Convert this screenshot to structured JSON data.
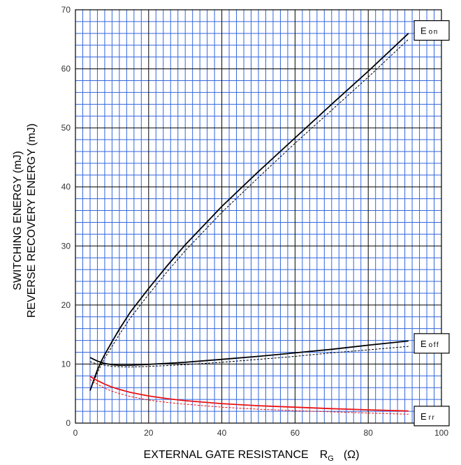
{
  "chart_data": {
    "type": "line",
    "title": "",
    "xlabel": "EXTERNAL GATE RESISTANCE",
    "xlabel_symbol": "R",
    "xlabel_subscript": "G",
    "xlabel_unit": "(Ω)",
    "ylabel_lines": [
      "SWITCHING ENERGY   (mJ)",
      "REVERSE RECOVERY ENERGY   (mJ)"
    ],
    "xlim": [
      0,
      100
    ],
    "ylim": [
      0,
      70
    ],
    "x_ticks": [
      0,
      20,
      40,
      60,
      80,
      100
    ],
    "y_ticks": [
      0,
      10,
      20,
      30,
      40,
      50,
      60,
      70
    ],
    "grid": {
      "major_color": "#000000",
      "minor_color": "#3366dd",
      "x_minor_step": 2,
      "y_minor_step": 2
    },
    "series": [
      {
        "name": "E",
        "subscript": "on",
        "color": "#000000",
        "style": "solid",
        "x": [
          4,
          5,
          6,
          7,
          8,
          10,
          12,
          15,
          20,
          25,
          30,
          40,
          50,
          60,
          70,
          80,
          91
        ],
        "y": [
          5.5,
          7.3,
          9.0,
          10.4,
          11.6,
          13.8,
          15.9,
          18.8,
          22.8,
          26.6,
          30.2,
          36.7,
          42.6,
          48.3,
          54.0,
          59.6,
          66.0
        ]
      },
      {
        "name": "E",
        "subscript": "on",
        "color": "#000000",
        "style": "dashed",
        "x": [
          4,
          5,
          6,
          7,
          8,
          10,
          12,
          15,
          20,
          25,
          30,
          40,
          50,
          60,
          70,
          80,
          91
        ],
        "y": [
          5.5,
          7.0,
          8.5,
          9.8,
          11.0,
          13.0,
          15.0,
          17.8,
          21.8,
          25.6,
          29.2,
          35.7,
          41.6,
          47.4,
          53.0,
          58.6,
          65.0
        ]
      },
      {
        "name": "E",
        "subscript": "off",
        "color": "#000000",
        "style": "solid",
        "x": [
          4,
          6,
          8,
          10,
          12,
          15,
          20,
          30,
          40,
          50,
          60,
          70,
          80,
          91
        ],
        "y": [
          11.1,
          10.5,
          10.1,
          9.9,
          9.8,
          9.8,
          9.95,
          10.3,
          10.8,
          11.3,
          11.9,
          12.5,
          13.2,
          13.9
        ]
      },
      {
        "name": "E",
        "subscript": "off",
        "color": "#000000",
        "style": "dashed",
        "x": [
          4,
          6,
          8,
          10,
          12,
          15,
          20,
          30,
          40,
          50,
          60,
          70,
          80,
          91
        ],
        "y": [
          10.4,
          10.0,
          9.8,
          9.6,
          9.55,
          9.5,
          9.6,
          9.9,
          10.3,
          10.8,
          11.3,
          11.9,
          12.4,
          13.0
        ]
      },
      {
        "name": "E",
        "subscript": "rr",
        "color": "#ee1111",
        "style": "solid",
        "x": [
          4,
          6,
          8,
          10,
          12,
          15,
          20,
          25,
          30,
          40,
          50,
          60,
          70,
          80,
          91
        ],
        "y": [
          7.9,
          7.2,
          6.6,
          6.1,
          5.7,
          5.2,
          4.6,
          4.15,
          3.8,
          3.3,
          2.95,
          2.7,
          2.45,
          2.25,
          2.05
        ]
      },
      {
        "name": "E",
        "subscript": "rr",
        "color": "#ee1111",
        "style": "dashed",
        "x": [
          4,
          6,
          8,
          10,
          12,
          15,
          20,
          25,
          30,
          40,
          50,
          60,
          70,
          80,
          91
        ],
        "y": [
          7.4,
          6.6,
          5.9,
          5.4,
          5.0,
          4.5,
          3.9,
          3.5,
          3.2,
          2.7,
          2.35,
          2.1,
          1.9,
          1.7,
          1.5
        ]
      }
    ],
    "labels": [
      {
        "main": "E",
        "sub": "on",
        "at_y": 66.5
      },
      {
        "main": "E",
        "sub": "off",
        "at_y": 13.5
      },
      {
        "main": "E",
        "sub": "rr",
        "at_y": 1.2
      }
    ]
  }
}
